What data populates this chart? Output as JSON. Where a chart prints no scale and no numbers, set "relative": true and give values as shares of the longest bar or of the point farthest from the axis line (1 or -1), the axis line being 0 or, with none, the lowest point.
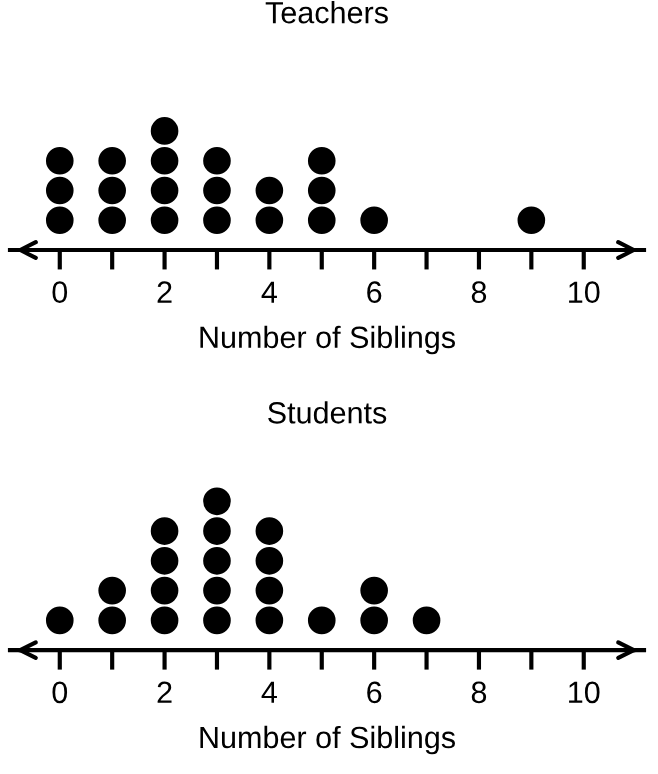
{
  "chart_data": [
    {
      "type": "scatter",
      "title": "Teachers",
      "xlabel": "Number of Siblings",
      "marker": "circle",
      "relative": true,
      "tick_labels": "x",
      "grid": false,
      "xlim": [
        -0.95,
        11.15
      ],
      "xticks": [
        0,
        {
          "value": 1,
          "label": null
        },
        2,
        {
          "value": 3,
          "label": null
        },
        4,
        {
          "value": 5,
          "label": null
        },
        6,
        {
          "value": 7,
          "label": null
        },
        8,
        {
          "value": 9,
          "label": null
        },
        10
      ],
      "series": [
        {
          "color": "#000000",
          "x": [
            0,
            0,
            0,
            1,
            1,
            1,
            2,
            2,
            2,
            2,
            3,
            3,
            3,
            4,
            4,
            5,
            5,
            5,
            6,
            9
          ],
          "values": [
            0.25,
            0.5,
            0.75,
            0.25,
            0.5,
            0.75,
            0.25,
            0.5,
            0.75,
            1,
            0.25,
            0.5,
            0.75,
            0.25,
            0.5,
            0.25,
            0.5,
            0.75,
            0.25,
            0.25
          ]
        }
      ]
    },
    {
      "type": "scatter",
      "title": "Students",
      "xlabel": "Number of Siblings",
      "marker": "circle",
      "relative": true,
      "tick_labels": "x",
      "grid": false,
      "xlim": [
        -0.95,
        11.15
      ],
      "xticks": [
        0,
        {
          "value": 1,
          "label": null
        },
        2,
        {
          "value": 3,
          "label": null
        },
        4,
        {
          "value": 5,
          "label": null
        },
        6,
        {
          "value": 7,
          "label": null
        },
        8,
        {
          "value": 9,
          "label": null
        },
        10
      ],
      "series": [
        {
          "color": "#000000",
          "x": [
            0,
            1,
            1,
            2,
            2,
            2,
            2,
            3,
            3,
            3,
            3,
            3,
            4,
            4,
            4,
            4,
            5,
            6,
            6,
            7
          ],
          "values": [
            0.2,
            0.2,
            0.4,
            0.2,
            0.4,
            0.6,
            0.8,
            0.2,
            0.4,
            0.6,
            0.8,
            1,
            0.2,
            0.4,
            0.6,
            0.8,
            0.2,
            0.2,
            0.4,
            0.2
          ]
        }
      ]
    }
  ]
}
